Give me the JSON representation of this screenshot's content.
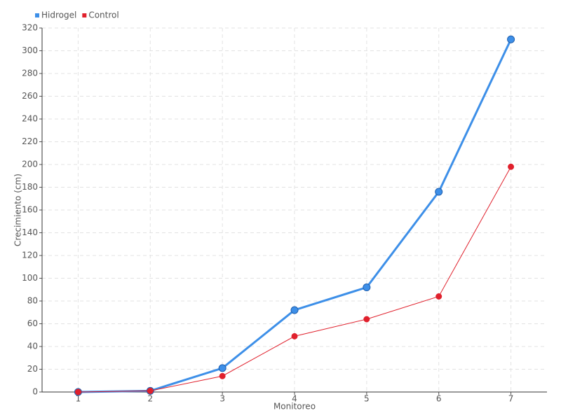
{
  "chart_data": {
    "type": "line",
    "x_label": "Monitoreo",
    "y_label": "Crecimiento (cm)",
    "categories": [
      "1",
      "2",
      "3",
      "4",
      "5",
      "6",
      "7"
    ],
    "series": [
      {
        "name": "Hidrogel",
        "color": "#3d8fe8",
        "values": [
          0,
          1,
          21,
          72,
          92,
          176,
          310
        ]
      },
      {
        "name": "Control",
        "color": "#e0202c",
        "values": [
          0,
          1,
          14,
          49,
          64,
          84,
          198
        ]
      }
    ],
    "ylim": [
      0,
      320
    ],
    "yticks": [
      0,
      20,
      40,
      60,
      80,
      100,
      120,
      140,
      160,
      180,
      200,
      220,
      240,
      260,
      280,
      300,
      320
    ],
    "grid": true,
    "legend": "top-left"
  }
}
